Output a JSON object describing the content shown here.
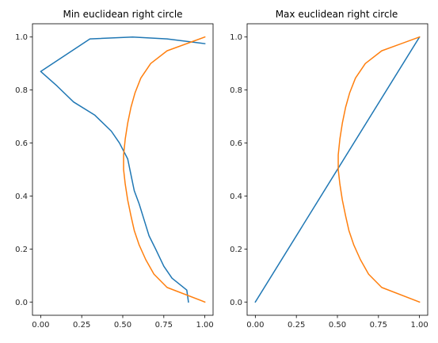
{
  "chart_data": [
    {
      "type": "line",
      "title": "Min euclidean right circle",
      "xlabel": "",
      "ylabel": "",
      "xlim": [
        -0.05,
        1.05
      ],
      "ylim": [
        -0.05,
        1.05
      ],
      "xticks": [
        "0.00",
        "0.25",
        "0.50",
        "0.75",
        "1.00"
      ],
      "yticks": [
        "0.0",
        "0.2",
        "0.4",
        "0.6",
        "0.8",
        "1.0"
      ],
      "grid": false,
      "series": [
        {
          "color": "#1f77b4",
          "points": [
            [
              0.9,
              0.0
            ],
            [
              0.89,
              0.045
            ],
            [
              0.8,
              0.09
            ],
            [
              0.75,
              0.135
            ],
            [
              0.7,
              0.2
            ],
            [
              0.66,
              0.25
            ],
            [
              0.63,
              0.31
            ],
            [
              0.6,
              0.37
            ],
            [
              0.57,
              0.42
            ],
            [
              0.55,
              0.48
            ],
            [
              0.53,
              0.54
            ],
            [
              0.48,
              0.6
            ],
            [
              0.43,
              0.645
            ],
            [
              0.33,
              0.705
            ],
            [
              0.2,
              0.755
            ],
            [
              0.1,
              0.815
            ],
            [
              0.0,
              0.87
            ],
            [
              0.3,
              0.993
            ],
            [
              0.56,
              1.0
            ],
            [
              0.77,
              0.993
            ],
            [
              1.0,
              0.975
            ]
          ]
        },
        {
          "color": "#ff7f0e",
          "points": [
            [
              1.0,
              0.0
            ],
            [
              0.77,
              0.055
            ],
            [
              0.69,
              0.105
            ],
            [
              0.64,
              0.16
            ],
            [
              0.6,
              0.215
            ],
            [
              0.57,
              0.27
            ],
            [
              0.55,
              0.325
            ],
            [
              0.53,
              0.385
            ],
            [
              0.515,
              0.445
            ],
            [
              0.505,
              0.5
            ],
            [
              0.505,
              0.555
            ],
            [
              0.515,
              0.615
            ],
            [
              0.53,
              0.675
            ],
            [
              0.55,
              0.735
            ],
            [
              0.575,
              0.79
            ],
            [
              0.61,
              0.845
            ],
            [
              0.67,
              0.9
            ],
            [
              0.77,
              0.948
            ],
            [
              1.0,
              1.0
            ]
          ]
        }
      ]
    },
    {
      "type": "line",
      "title": "Max euclidean right circle",
      "xlabel": "",
      "ylabel": "",
      "xlim": [
        -0.05,
        1.05
      ],
      "ylim": [
        -0.05,
        1.05
      ],
      "xticks": [
        "0.00",
        "0.25",
        "0.50",
        "0.75",
        "1.00"
      ],
      "yticks": [
        "0.0",
        "0.2",
        "0.4",
        "0.6",
        "0.8",
        "1.0"
      ],
      "grid": false,
      "series": [
        {
          "color": "#1f77b4",
          "points": [
            [
              0.0,
              0.0
            ],
            [
              1.0,
              1.0
            ]
          ]
        },
        {
          "color": "#ff7f0e",
          "points": [
            [
              1.0,
              0.0
            ],
            [
              0.77,
              0.055
            ],
            [
              0.69,
              0.105
            ],
            [
              0.64,
              0.16
            ],
            [
              0.6,
              0.215
            ],
            [
              0.57,
              0.27
            ],
            [
              0.55,
              0.325
            ],
            [
              0.53,
              0.385
            ],
            [
              0.515,
              0.445
            ],
            [
              0.505,
              0.5
            ],
            [
              0.505,
              0.555
            ],
            [
              0.515,
              0.615
            ],
            [
              0.53,
              0.675
            ],
            [
              0.55,
              0.735
            ],
            [
              0.575,
              0.79
            ],
            [
              0.61,
              0.845
            ],
            [
              0.67,
              0.9
            ],
            [
              0.77,
              0.948
            ],
            [
              1.0,
              1.0
            ]
          ]
        }
      ]
    }
  ]
}
